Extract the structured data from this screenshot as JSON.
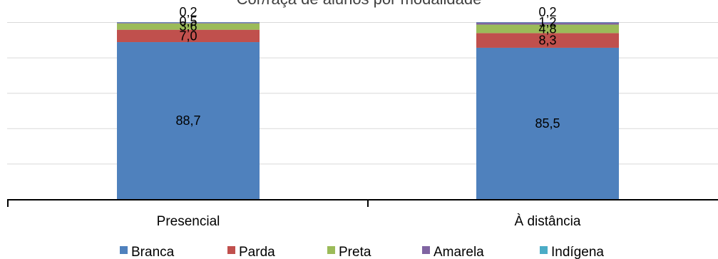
{
  "chart_data": {
    "type": "bar",
    "stacked": true,
    "title": "Cor/raça de alunos por modalidade",
    "categories": [
      "Presencial",
      "À distância"
    ],
    "series": [
      {
        "name": "Branca",
        "color": "#4F81BD",
        "values": [
          88.7,
          85.5
        ],
        "labels": [
          "88,7",
          "85,5"
        ]
      },
      {
        "name": "Parda",
        "color": "#C0504D",
        "values": [
          7.0,
          8.3
        ],
        "labels": [
          "7,0",
          "8,3"
        ]
      },
      {
        "name": "Preta",
        "color": "#9BBB59",
        "values": [
          3.6,
          4.8
        ],
        "labels": [
          "3,6",
          "4,8"
        ]
      },
      {
        "name": "Amarela",
        "color": "#8064A2",
        "values": [
          0.5,
          1.2
        ],
        "labels": [
          "0,5",
          "1,2"
        ]
      },
      {
        "name": "Indígena",
        "color": "#4BACC6",
        "values": [
          0.2,
          0.2
        ],
        "labels": [
          "0,2",
          "0,2"
        ]
      }
    ],
    "ylim": [
      0,
      100
    ],
    "y_gridlines": true,
    "legend_position": "bottom",
    "xlabel": "",
    "ylabel": ""
  }
}
